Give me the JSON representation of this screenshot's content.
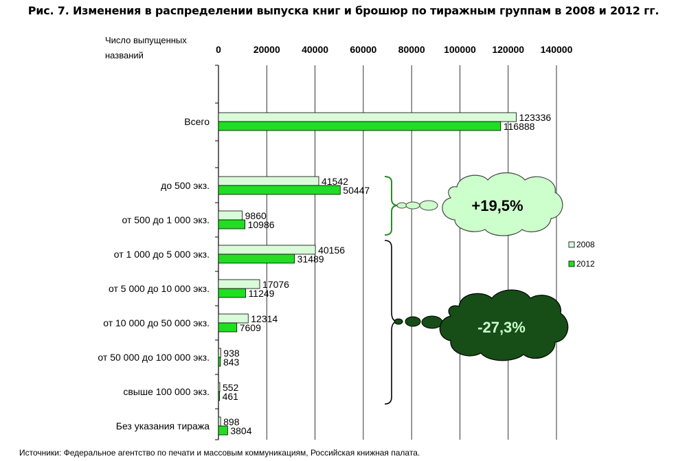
{
  "title": "Рис. 7. Изменения в распределении выпуска книг и брошюр по тиражным группам в 2008 и 2012 гг.",
  "source": "Источники: Федеральное агентство по печати и массовым коммуникациям, Российская книжная палата.",
  "colors": {
    "series_2008": "#d9fbd9",
    "series_2012": "#22dd22",
    "light_cloud": "#ccffcc",
    "dark_cloud": "#174d17"
  },
  "annotations": [
    {
      "text": "+19,5%",
      "style": "light"
    },
    {
      "text": "-27,3%",
      "style": "dark"
    }
  ],
  "chart_data": {
    "type": "bar",
    "orientation": "horizontal",
    "title": "Рис. 7. Изменения в распределении выпуска книг и брошюр по тиражным группам в 2008 и 2012 гг.",
    "ylabel": "Число выпущенных названий",
    "xlim": [
      0,
      140000
    ],
    "xticks": [
      "0",
      "20000",
      "40000",
      "60000",
      "80000",
      "100000",
      "120000",
      "140000"
    ],
    "x_axis_position": "top",
    "grid": true,
    "legend": "right",
    "categories": [
      "Всего",
      "до 500 экз.",
      "от 500 до 1 000 экз.",
      "от 1 000 до 5 000 экз.",
      "от 5 000 до 10 000 экз.",
      "от 10 000 до 50 000 экз.",
      "от 50 000 до 100 000 экз.",
      "свыше 100 000 экз.",
      "Без указания тиража"
    ],
    "series": [
      {
        "name": "2008",
        "values": [
          123336,
          41542,
          9860,
          40156,
          17076,
          12314,
          938,
          552,
          898
        ],
        "labels": [
          "123336",
          "41542",
          "9860",
          "40156",
          "17076",
          "12314",
          "938",
          "552",
          "898"
        ]
      },
      {
        "name": "2012",
        "values": [
          116888,
          50447,
          10986,
          31489,
          11249,
          7609,
          843,
          461,
          3804
        ],
        "labels": [
          "116888",
          "50447",
          "10986",
          "31489",
          "11249",
          "7609",
          "843",
          "461",
          "3804"
        ]
      }
    ]
  }
}
